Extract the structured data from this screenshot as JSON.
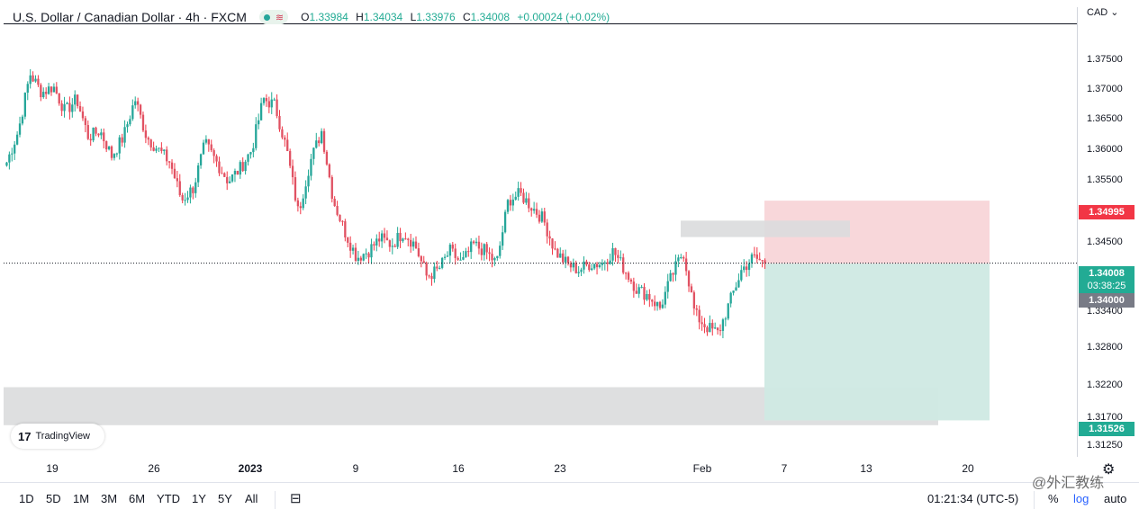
{
  "legend": {
    "title": "U.S. Dollar / Canadian Dollar · 4h · FXCM",
    "open_label": "O",
    "open": "1.33984",
    "high_label": "H",
    "high": "1.34034",
    "low_label": "L",
    "low": "1.33976",
    "close_label": "C",
    "close": "1.34008",
    "change": "+0.00024 (+0.02%)"
  },
  "currency": "CAD",
  "price_axis": {
    "ticks": [
      "1.37500",
      "1.37000",
      "1.36500",
      "1.36000",
      "1.35500",
      "1.34500",
      "1.33400",
      "1.32800",
      "1.32200",
      "1.31700",
      "1.31250"
    ],
    "stop_label": "1.34995",
    "last_price": "1.34008",
    "countdown": "03:38:25",
    "entry_label": "1.34000",
    "target_label": "1.31526"
  },
  "time_axis": [
    "19",
    "26",
    "2023",
    "9",
    "16",
    "23",
    "Feb",
    "7",
    "13",
    "20"
  ],
  "timeframes": [
    "1D",
    "5D",
    "1M",
    "3M",
    "6M",
    "YTD",
    "1Y",
    "5Y",
    "All"
  ],
  "status": {
    "clock": "01:21:34 (UTC-5)",
    "percent": "%",
    "log": "log",
    "auto": "auto"
  },
  "brand": {
    "logo_text": "TradingView"
  },
  "watermark": "@外汇教练",
  "colors": {
    "up": "#22ab94",
    "up_body": "#26a69a",
    "down": "#f23645",
    "down_body": "#e05263",
    "stop_zone": "#f8d7da",
    "target_zone": "#cfe9e3",
    "zone_gray": "#dadbdd"
  },
  "chart_data": {
    "type": "candlestick",
    "symbol": "USDCAD",
    "interval": "4h",
    "ylim": [
      1.3095,
      1.3805
    ],
    "last": 1.34008,
    "position": {
      "type": "short",
      "entry": 1.34,
      "stop": 1.34995,
      "target": 1.31526
    },
    "resistance_zone": [
      1.3442,
      1.3468
    ],
    "support_zone": [
      1.3145,
      1.3205
    ],
    "close_path": [
      1.356,
      1.361,
      1.37,
      1.367,
      1.368,
      1.364,
      1.366,
      1.36,
      1.361,
      1.357,
      1.36,
      1.366,
      1.36,
      1.358,
      1.356,
      1.35,
      1.352,
      1.359,
      1.356,
      1.353,
      1.355,
      1.358,
      1.366,
      1.365,
      1.358,
      1.348,
      1.356,
      1.361,
      1.35,
      1.345,
      1.341,
      1.342,
      1.344,
      1.343,
      1.345,
      1.343,
      1.338,
      1.339,
      1.342,
      1.34,
      1.343,
      1.342,
      1.34,
      1.35,
      1.351,
      1.349,
      1.347,
      1.342,
      1.34,
      1.339,
      1.34,
      1.34,
      1.342,
      1.339,
      1.336,
      1.335,
      1.333,
      1.338,
      1.342,
      1.332,
      1.33,
      1.329,
      1.334,
      1.339,
      1.341,
      1.3401
    ]
  }
}
